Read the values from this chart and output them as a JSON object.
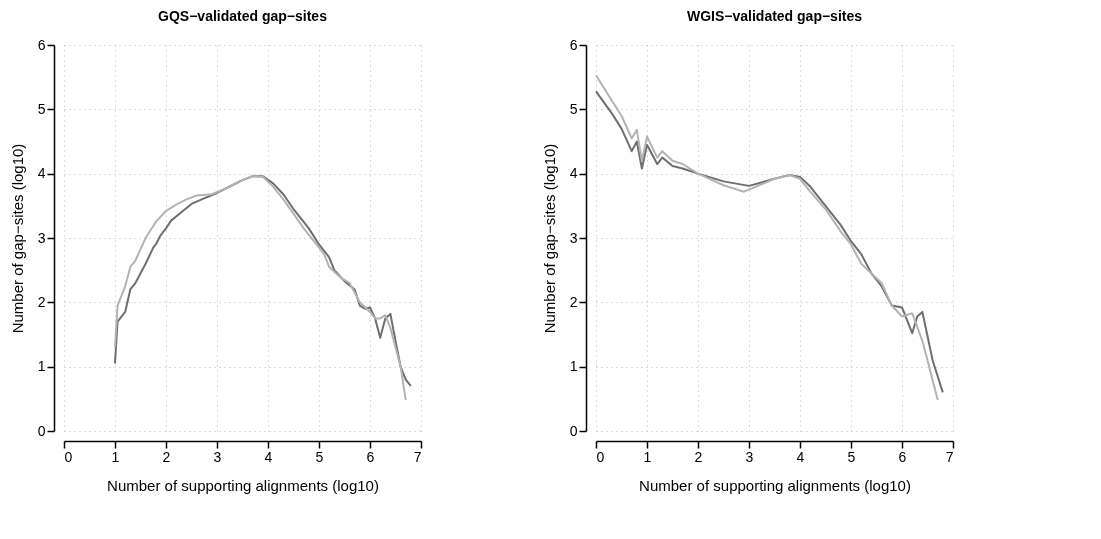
{
  "chart_data": [
    {
      "type": "line",
      "title": "GQS−validated gap−sites",
      "xlabel": "Number of supporting alignments (log10)",
      "ylabel": "Number of gap−sites (log10)",
      "xlim": [
        0,
        7
      ],
      "ylim": [
        0,
        6
      ],
      "xticks": [
        0,
        1,
        2,
        3,
        4,
        5,
        6,
        7
      ],
      "yticks": [
        0,
        1,
        2,
        3,
        4,
        5,
        6
      ],
      "grid": true,
      "line_style": "solid",
      "series": [
        {
          "color": "#6e6e6e",
          "x": [
            1,
            1.05,
            1.2,
            1.3,
            1.4,
            1.6,
            1.75,
            1.8,
            1.9,
            2,
            2.1,
            2.3,
            2.5,
            2.7,
            3,
            3.3,
            3.5,
            3.7,
            3.9,
            4.1,
            4.3,
            4.5,
            4.7,
            4.8,
            5,
            5.2,
            5.3,
            5.5,
            5.7,
            5.8,
            5.9,
            6,
            6.1,
            6.2,
            6.3,
            6.4,
            6.5,
            6.6,
            6.7,
            6.8
          ],
          "values": [
            1.05,
            1.7,
            1.85,
            2.2,
            2.3,
            2.6,
            2.85,
            2.9,
            3.05,
            3.15,
            3.27,
            3.4,
            3.53,
            3.6,
            3.7,
            3.82,
            3.9,
            3.96,
            3.96,
            3.85,
            3.68,
            3.45,
            3.25,
            3.15,
            2.9,
            2.7,
            2.5,
            2.33,
            2.2,
            1.95,
            1.9,
            1.92,
            1.75,
            1.45,
            1.75,
            1.82,
            1.4,
            1.0,
            0.8,
            0.7
          ]
        },
        {
          "color": "#b3b3b3",
          "x": [
            1,
            1.05,
            1.2,
            1.3,
            1.4,
            1.6,
            1.8,
            2,
            2.2,
            2.4,
            2.6,
            2.9,
            3.2,
            3.5,
            3.7,
            3.9,
            4.1,
            4.3,
            4.5,
            4.7,
            4.9,
            5.1,
            5.2,
            5.4,
            5.6,
            5.8,
            6,
            6.1,
            6.2,
            6.3,
            6.4,
            6.5,
            6.6,
            6.7
          ],
          "values": [
            1.3,
            1.95,
            2.25,
            2.55,
            2.65,
            3.0,
            3.25,
            3.42,
            3.52,
            3.6,
            3.66,
            3.68,
            3.78,
            3.9,
            3.96,
            3.95,
            3.8,
            3.6,
            3.38,
            3.15,
            2.95,
            2.75,
            2.55,
            2.4,
            2.3,
            2.0,
            1.85,
            1.75,
            1.75,
            1.8,
            1.6,
            1.3,
            1.0,
            0.48
          ]
        }
      ]
    },
    {
      "type": "line",
      "title": "WGIS−validated gap−sites",
      "xlabel": "Number of supporting alignments (log10)",
      "ylabel": "Number of gap−sites (log10)",
      "xlim": [
        0,
        7
      ],
      "ylim": [
        0,
        6
      ],
      "xticks": [
        0,
        1,
        2,
        3,
        4,
        5,
        6,
        7
      ],
      "yticks": [
        0,
        1,
        2,
        3,
        4,
        5,
        6
      ],
      "grid": true,
      "line_style": "solid",
      "series": [
        {
          "color": "#6e6e6e",
          "x": [
            0,
            0.3,
            0.5,
            0.7,
            0.8,
            0.9,
            1,
            1.2,
            1.3,
            1.5,
            1.7,
            2,
            2.5,
            3,
            3.5,
            3.8,
            4,
            4.2,
            4.5,
            4.8,
            5,
            5.2,
            5.4,
            5.6,
            5.8,
            6,
            6.2,
            6.3,
            6.4,
            6.6,
            6.8
          ],
          "values": [
            5.28,
            4.95,
            4.7,
            4.35,
            4.5,
            4.08,
            4.45,
            4.15,
            4.25,
            4.12,
            4.08,
            4.0,
            3.88,
            3.81,
            3.92,
            3.98,
            3.95,
            3.8,
            3.5,
            3.2,
            2.95,
            2.75,
            2.45,
            2.25,
            1.95,
            1.92,
            1.52,
            1.78,
            1.85,
            1.1,
            0.6
          ]
        },
        {
          "color": "#b3b3b3",
          "x": [
            0,
            0.3,
            0.5,
            0.7,
            0.8,
            0.9,
            1,
            1.2,
            1.3,
            1.5,
            1.7,
            2,
            2.5,
            2.9,
            3.2,
            3.5,
            3.8,
            4,
            4.2,
            4.5,
            4.8,
            5,
            5.2,
            5.4,
            5.6,
            5.8,
            6,
            6.2,
            6.4,
            6.5,
            6.7
          ],
          "values": [
            5.53,
            5.15,
            4.9,
            4.55,
            4.68,
            4.2,
            4.58,
            4.25,
            4.35,
            4.2,
            4.15,
            4.0,
            3.82,
            3.72,
            3.82,
            3.92,
            3.98,
            3.92,
            3.72,
            3.45,
            3.1,
            2.9,
            2.6,
            2.45,
            2.3,
            1.95,
            1.78,
            1.83,
            1.4,
            1.1,
            0.48
          ]
        }
      ]
    }
  ]
}
